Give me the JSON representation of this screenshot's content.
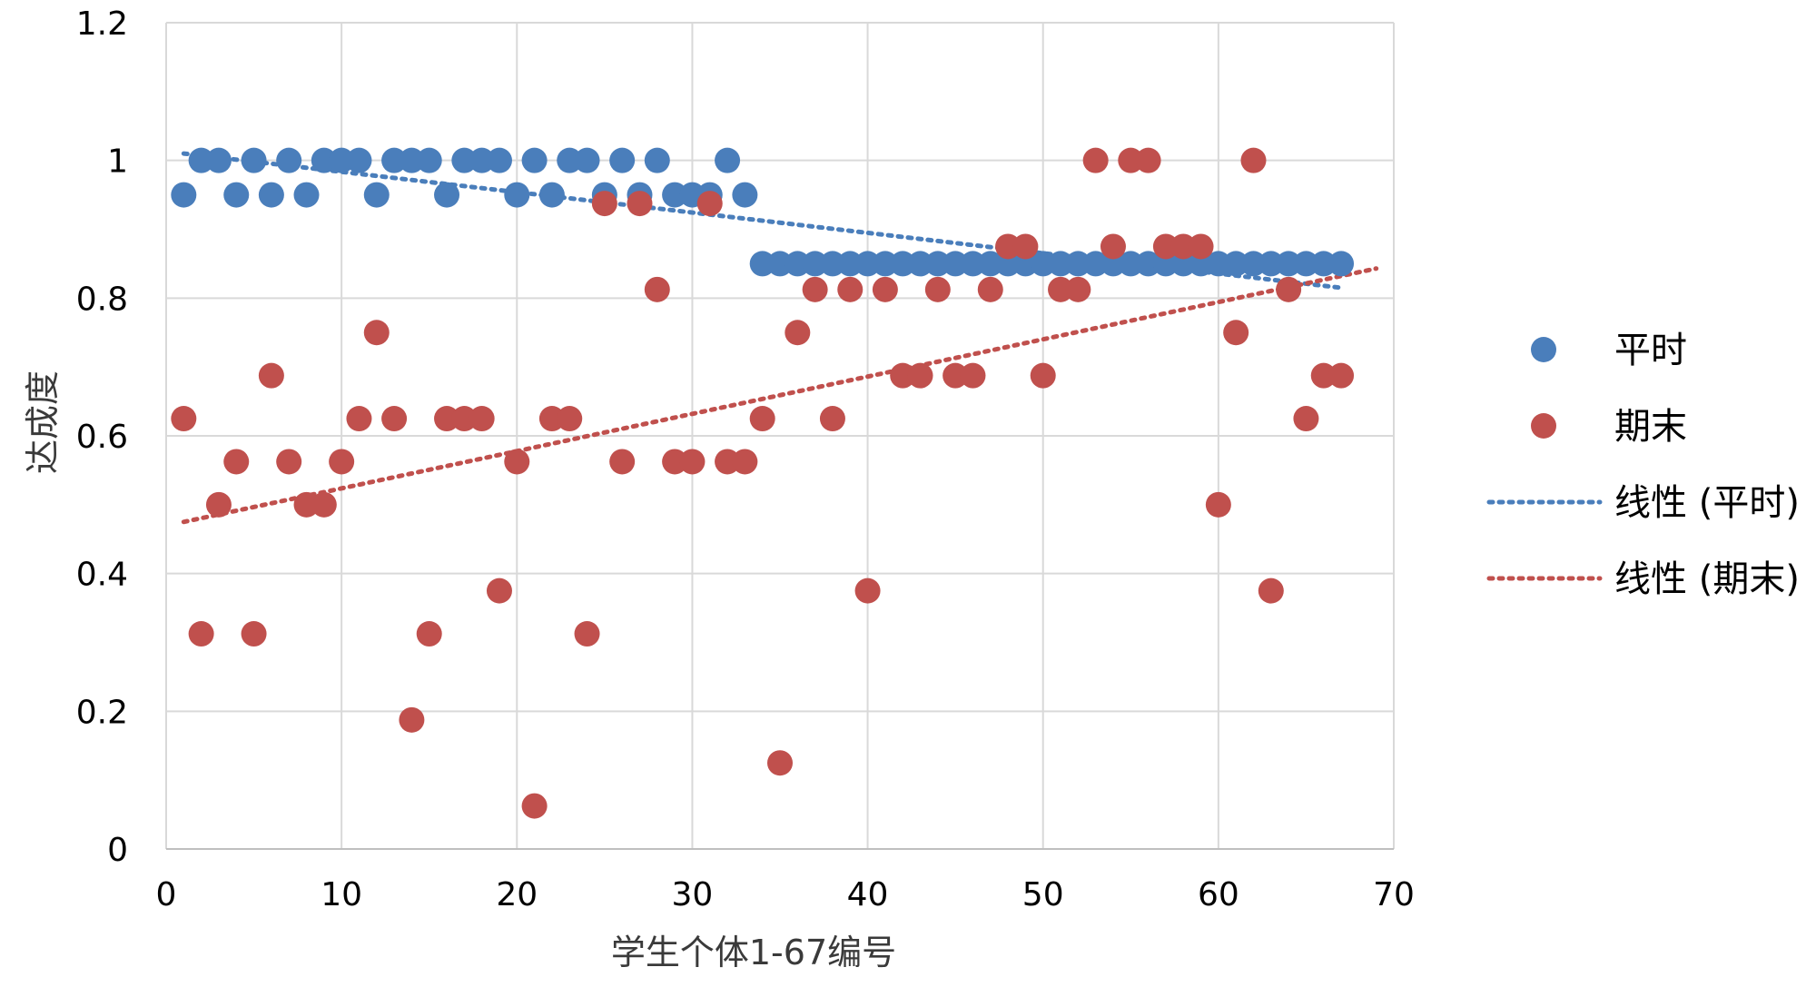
{
  "chart_data": {
    "type": "scatter",
    "title": "",
    "xlabel": "学生个体1-67编号",
    "ylabel": "达成度",
    "xlim": [
      0,
      70
    ],
    "ylim": [
      0,
      1.2
    ],
    "xticks": [
      "0",
      "10",
      "20",
      "30",
      "40",
      "50",
      "60",
      "70"
    ],
    "yticks": [
      "0",
      "0.2",
      "0.4",
      "0.6",
      "0.8",
      "1",
      "1.2"
    ],
    "grid": true,
    "legend_position": "right",
    "series": [
      {
        "name": "平时",
        "color": "#4a7ebb",
        "marker": "circle",
        "x": [
          1,
          2,
          3,
          4,
          5,
          6,
          7,
          8,
          9,
          10,
          11,
          12,
          13,
          14,
          15,
          16,
          17,
          18,
          19,
          20,
          21,
          22,
          23,
          24,
          25,
          26,
          27,
          28,
          29,
          30,
          31,
          32,
          33,
          34,
          35,
          36,
          37,
          38,
          39,
          40,
          41,
          42,
          43,
          44,
          45,
          46,
          47,
          48,
          49,
          50,
          51,
          52,
          53,
          54,
          55,
          56,
          57,
          58,
          59,
          60,
          61,
          62,
          63,
          64,
          65,
          66,
          67
        ],
        "y": [
          0.95,
          1,
          1,
          0.95,
          1,
          0.95,
          1,
          0.95,
          1,
          1,
          1,
          0.95,
          1,
          1,
          1,
          0.95,
          1,
          1,
          1,
          0.95,
          1,
          0.95,
          1,
          1,
          0.95,
          1,
          0.95,
          1,
          0.95,
          0.95,
          0.95,
          1,
          0.95,
          0.85,
          0.85,
          0.85,
          0.85,
          0.85,
          0.85,
          0.85,
          0.85,
          0.85,
          0.85,
          0.85,
          0.85,
          0.85,
          0.85,
          0.85,
          0.85,
          0.85,
          0.85,
          0.85,
          0.85,
          0.85,
          0.85,
          0.85,
          0.85,
          0.85,
          0.85,
          0.85,
          0.85,
          0.85,
          0.85,
          0.85,
          0.85,
          0.85,
          0.85
        ]
      },
      {
        "name": "期末",
        "color": "#c0504d",
        "marker": "circle",
        "x": [
          1,
          2,
          3,
          4,
          5,
          6,
          7,
          8,
          9,
          10,
          11,
          12,
          13,
          14,
          15,
          16,
          17,
          18,
          19,
          20,
          21,
          22,
          23,
          24,
          25,
          26,
          27,
          28,
          29,
          30,
          31,
          32,
          33,
          34,
          35,
          36,
          37,
          38,
          39,
          40,
          41,
          42,
          43,
          44,
          45,
          46,
          47,
          48,
          49,
          50,
          51,
          52,
          53,
          54,
          55,
          56,
          57,
          58,
          59,
          60,
          61,
          62,
          63,
          64,
          65,
          66,
          67
        ],
        "y": [
          0.625,
          0.3125,
          0.5,
          0.5625,
          0.3125,
          0.6875,
          0.5625,
          0.5,
          0.5,
          0.5625,
          0.625,
          0.75,
          0.625,
          0.1875,
          0.3125,
          0.625,
          0.625,
          0.625,
          0.375,
          0.5625,
          0.0625,
          0.625,
          0.625,
          0.3125,
          0.9375,
          0.5625,
          0.9375,
          0.8125,
          0.5625,
          0.5625,
          0.9375,
          0.5625,
          0.5625,
          0.625,
          0.125,
          0.75,
          0.8125,
          0.625,
          0.8125,
          0.375,
          0.8125,
          0.6875,
          0.6875,
          0.8125,
          0.6875,
          0.6875,
          0.8125,
          0.875,
          0.875,
          0.6875,
          0.8125,
          0.8125,
          1,
          0.875,
          1,
          1,
          0.875,
          0.875,
          0.875,
          0.5,
          0.75,
          1,
          0.375,
          0.8125,
          0.625,
          0.6875,
          0.6875
        ]
      }
    ],
    "trendlines": [
      {
        "name": "线性 (平时)",
        "of": "平时",
        "type": "linear",
        "color": "#4a7ebb",
        "style": "dotted",
        "from": {
          "x": 1,
          "y": 1.01
        },
        "to": {
          "x": 67,
          "y": 0.815
        }
      },
      {
        "name": "线性 (期末)",
        "of": "期末",
        "type": "linear",
        "color": "#c0504d",
        "style": "dotted",
        "from": {
          "x": 1,
          "y": 0.475
        },
        "to": {
          "x": 69,
          "y": 0.843
        }
      }
    ]
  }
}
